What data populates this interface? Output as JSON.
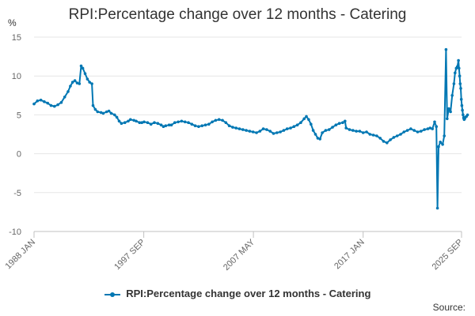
{
  "chart_data": {
    "type": "line",
    "title": "RPI:Percentage change over 12 months - Catering",
    "ylabel": "%",
    "xlabel": "",
    "ylim": [
      -10,
      15
    ],
    "yticks": [
      15,
      10,
      5,
      0,
      -5,
      -10
    ],
    "xlim": [
      1988.0,
      2025.67
    ],
    "xtick_labels": [
      {
        "label": "1988 JAN",
        "x": 1988.0
      },
      {
        "label": "1997 SEP",
        "x": 1997.67
      },
      {
        "label": "2007 MAY",
        "x": 2007.33
      },
      {
        "label": "2017 JAN",
        "x": 2017.0
      },
      {
        "label": "2025 SEP",
        "x": 2025.67
      }
    ],
    "grid": true,
    "legend_position": "bottom",
    "series": [
      {
        "name": "RPI:Percentage change over 12 months - Catering",
        "color": "#0077b3",
        "points": [
          [
            1988.0,
            6.4
          ],
          [
            1988.3,
            6.8
          ],
          [
            1988.6,
            6.9
          ],
          [
            1988.9,
            6.7
          ],
          [
            1989.2,
            6.5
          ],
          [
            1989.5,
            6.2
          ],
          [
            1989.8,
            6.1
          ],
          [
            1990.1,
            6.3
          ],
          [
            1990.4,
            6.6
          ],
          [
            1990.7,
            7.3
          ],
          [
            1991.0,
            8.0
          ],
          [
            1991.2,
            8.7
          ],
          [
            1991.4,
            9.2
          ],
          [
            1991.6,
            9.4
          ],
          [
            1991.8,
            9.1
          ],
          [
            1992.0,
            9.0
          ],
          [
            1992.15,
            11.3
          ],
          [
            1992.3,
            11.0
          ],
          [
            1992.5,
            10.3
          ],
          [
            1992.7,
            9.6
          ],
          [
            1992.9,
            9.2
          ],
          [
            1993.1,
            9.0
          ],
          [
            1993.2,
            6.2
          ],
          [
            1993.4,
            5.7
          ],
          [
            1993.6,
            5.4
          ],
          [
            1993.9,
            5.3
          ],
          [
            1994.1,
            5.2
          ],
          [
            1994.4,
            5.4
          ],
          [
            1994.6,
            5.5
          ],
          [
            1994.8,
            5.2
          ],
          [
            1995.1,
            5.0
          ],
          [
            1995.3,
            4.7
          ],
          [
            1995.5,
            4.2
          ],
          [
            1995.7,
            3.9
          ],
          [
            1996.0,
            4.0
          ],
          [
            1996.3,
            4.2
          ],
          [
            1996.5,
            4.4
          ],
          [
            1996.8,
            4.3
          ],
          [
            1997.0,
            4.2
          ],
          [
            1997.3,
            4.0
          ],
          [
            1997.5,
            4.0
          ],
          [
            1997.7,
            4.1
          ],
          [
            1998.0,
            4.0
          ],
          [
            1998.3,
            3.8
          ],
          [
            1998.6,
            4.0
          ],
          [
            1998.9,
            3.9
          ],
          [
            1999.2,
            3.7
          ],
          [
            1999.4,
            3.5
          ],
          [
            1999.6,
            3.6
          ],
          [
            1999.9,
            3.7
          ],
          [
            2000.1,
            3.7
          ],
          [
            2000.4,
            4.0
          ],
          [
            2000.7,
            4.1
          ],
          [
            2001.0,
            4.2
          ],
          [
            2001.3,
            4.1
          ],
          [
            2001.6,
            4.0
          ],
          [
            2001.9,
            3.8
          ],
          [
            2002.2,
            3.6
          ],
          [
            2002.5,
            3.5
          ],
          [
            2002.8,
            3.6
          ],
          [
            2003.1,
            3.7
          ],
          [
            2003.4,
            3.8
          ],
          [
            2003.7,
            4.1
          ],
          [
            2004.0,
            4.3
          ],
          [
            2004.3,
            4.4
          ],
          [
            2004.6,
            4.3
          ],
          [
            2004.9,
            4.0
          ],
          [
            2005.2,
            3.6
          ],
          [
            2005.5,
            3.4
          ],
          [
            2005.8,
            3.3
          ],
          [
            2006.1,
            3.2
          ],
          [
            2006.4,
            3.1
          ],
          [
            2006.7,
            3.0
          ],
          [
            2007.0,
            2.9
          ],
          [
            2007.3,
            2.8
          ],
          [
            2007.6,
            2.7
          ],
          [
            2007.9,
            2.9
          ],
          [
            2008.2,
            3.2
          ],
          [
            2008.5,
            3.1
          ],
          [
            2008.8,
            2.9
          ],
          [
            2009.1,
            2.6
          ],
          [
            2009.4,
            2.7
          ],
          [
            2009.7,
            2.8
          ],
          [
            2010.0,
            3.0
          ],
          [
            2010.3,
            3.2
          ],
          [
            2010.6,
            3.3
          ],
          [
            2010.9,
            3.5
          ],
          [
            2011.2,
            3.7
          ],
          [
            2011.5,
            4.0
          ],
          [
            2011.8,
            4.5
          ],
          [
            2012.0,
            4.8
          ],
          [
            2012.2,
            4.4
          ],
          [
            2012.4,
            3.8
          ],
          [
            2012.6,
            3.0
          ],
          [
            2012.8,
            2.5
          ],
          [
            2013.0,
            2.0
          ],
          [
            2013.2,
            1.9
          ],
          [
            2013.4,
            2.7
          ],
          [
            2013.7,
            3.0
          ],
          [
            2014.0,
            3.1
          ],
          [
            2014.3,
            3.4
          ],
          [
            2014.6,
            3.7
          ],
          [
            2014.9,
            3.9
          ],
          [
            2015.2,
            4.0
          ],
          [
            2015.4,
            4.2
          ],
          [
            2015.5,
            3.3
          ],
          [
            2015.8,
            3.1
          ],
          [
            2016.1,
            3.0
          ],
          [
            2016.4,
            2.9
          ],
          [
            2016.7,
            2.9
          ],
          [
            2017.0,
            2.7
          ],
          [
            2017.3,
            2.8
          ],
          [
            2017.6,
            2.5
          ],
          [
            2017.9,
            2.4
          ],
          [
            2018.2,
            2.3
          ],
          [
            2018.5,
            2.0
          ],
          [
            2018.8,
            1.6
          ],
          [
            2019.1,
            1.4
          ],
          [
            2019.4,
            1.8
          ],
          [
            2019.7,
            2.1
          ],
          [
            2020.0,
            2.3
          ],
          [
            2020.3,
            2.5
          ],
          [
            2020.6,
            2.8
          ],
          [
            2020.9,
            3.0
          ],
          [
            2021.2,
            3.2
          ],
          [
            2021.5,
            3.0
          ],
          [
            2021.8,
            2.8
          ],
          [
            2022.1,
            2.9
          ],
          [
            2022.4,
            3.1
          ],
          [
            2022.7,
            3.2
          ],
          [
            2022.9,
            3.3
          ],
          [
            2023.1,
            3.2
          ],
          [
            2023.3,
            4.1
          ],
          [
            2023.45,
            3.5
          ],
          [
            2023.55,
            -7.0
          ],
          [
            2023.65,
            0.9
          ],
          [
            2023.8,
            1.5
          ],
          [
            2024.0,
            1.2
          ],
          [
            2024.15,
            2.3
          ],
          [
            2024.3,
            13.4
          ],
          [
            2024.4,
            4.5
          ],
          [
            2024.55,
            5.8
          ],
          [
            2024.7,
            5.4
          ],
          [
            2024.85,
            7.5
          ],
          [
            2025.0,
            9.0
          ],
          [
            2025.1,
            10.4
          ],
          [
            2025.2,
            11.0
          ],
          [
            2025.3,
            11.2
          ],
          [
            2025.4,
            12.0
          ],
          [
            2025.45,
            11.0
          ],
          [
            2025.5,
            10.0
          ],
          [
            2025.55,
            9.0
          ],
          [
            2025.6,
            8.4
          ],
          [
            2025.65,
            7.0
          ],
          [
            2025.7,
            6.2
          ],
          [
            2025.75,
            5.6
          ],
          [
            2025.8,
            5.0
          ],
          [
            2025.85,
            4.6
          ],
          [
            2025.9,
            4.4
          ],
          [
            2025.95,
            4.5
          ],
          [
            2026.0,
            4.7
          ],
          [
            2026.1,
            4.8
          ],
          [
            2026.2,
            5.0
          ]
        ]
      }
    ]
  },
  "legend": {
    "label": "RPI:Percentage change over 12 months - Catering"
  },
  "source_label": "Source:"
}
